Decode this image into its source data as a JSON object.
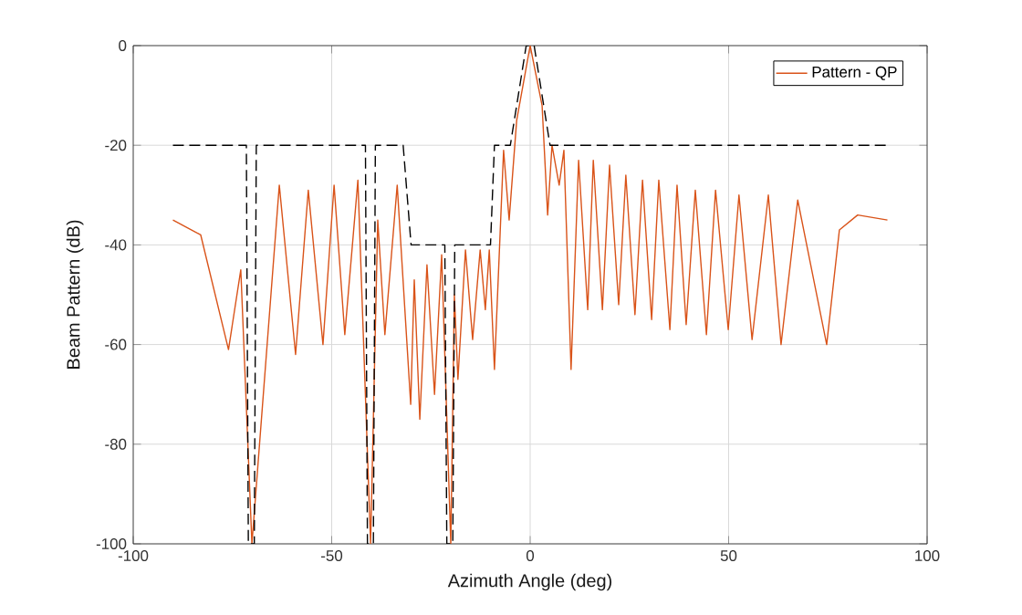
{
  "chart_data": {
    "type": "line",
    "xlabel": "Azimuth Angle (deg)",
    "ylabel": "Beam Pattern (dB)",
    "xlim": [
      -100,
      100
    ],
    "ylim": [
      -100,
      0
    ],
    "xticks": [
      -100,
      -50,
      0,
      50,
      100
    ],
    "yticks": [
      -100,
      -80,
      -60,
      -40,
      -20,
      0
    ],
    "grid": true,
    "legend": "top right",
    "series": [
      {
        "name": "Pattern - QP",
        "color": "#d95319",
        "line_style": "solid",
        "x": [
          -90,
          -83,
          -76,
          -72.9,
          -70.1,
          -63.2,
          -59.1,
          -55.9,
          -52.2,
          -49.4,
          -46.7,
          -43.4,
          -40.2,
          -38.4,
          -36.6,
          -33.5,
          -30.1,
          -29.2,
          -27.8,
          -26,
          -24.1,
          -22.3,
          -20,
          -19.1,
          -18.2,
          -16.3,
          -14.5,
          -12.6,
          -11.3,
          -10.3,
          -9,
          -6.7,
          -5.3,
          -3.4,
          0,
          3,
          4.4,
          5.5,
          7.3,
          8.5,
          10.3,
          12.2,
          14.5,
          15.9,
          18.2,
          20,
          22.3,
          24.1,
          26.4,
          28.3,
          30.6,
          32.4,
          35.2,
          37,
          39.3,
          41.6,
          44.4,
          46.7,
          49.9,
          52.6,
          55.9,
          60,
          63.2,
          67.4,
          74.7,
          77.9,
          82.5,
          90
        ],
        "values": [
          -35,
          -38,
          -61,
          -45,
          -100,
          -28,
          -62,
          -29,
          -60,
          -28,
          -58,
          -27,
          -100,
          -35,
          -58,
          -28,
          -72,
          -47,
          -75,
          -44,
          -70,
          -42,
          -100,
          -50,
          -67,
          -41,
          -59,
          -41,
          -53,
          -41,
          -65,
          -21,
          -35,
          -15,
          0,
          -12,
          -34,
          -20,
          -28,
          -21,
          -65,
          -23,
          -53,
          -23,
          -53,
          -24,
          -52,
          -26,
          -54,
          -27,
          -55,
          -27,
          -57,
          -28,
          -56,
          -29,
          -58,
          -29,
          -57,
          -30,
          -59,
          -30,
          -60,
          -31,
          -60,
          -37,
          -34,
          -35
        ]
      },
      {
        "color": "#000000",
        "line_style": "dashed",
        "x": [
          -90,
          -71.5,
          -71,
          -69.5,
          -69,
          -41.5,
          -41,
          -39.5,
          -39,
          -32,
          -30,
          -21.5,
          -21,
          -19.5,
          -19,
          -10,
          -9,
          -5,
          -1,
          1,
          5,
          90
        ],
        "values": [
          -20,
          -20,
          -100,
          -100,
          -20,
          -20,
          -100,
          -100,
          -20,
          -20,
          -40,
          -40,
          -100,
          -100,
          -40,
          -40,
          -20,
          -20,
          0,
          0,
          -20,
          -20
        ]
      }
    ]
  }
}
